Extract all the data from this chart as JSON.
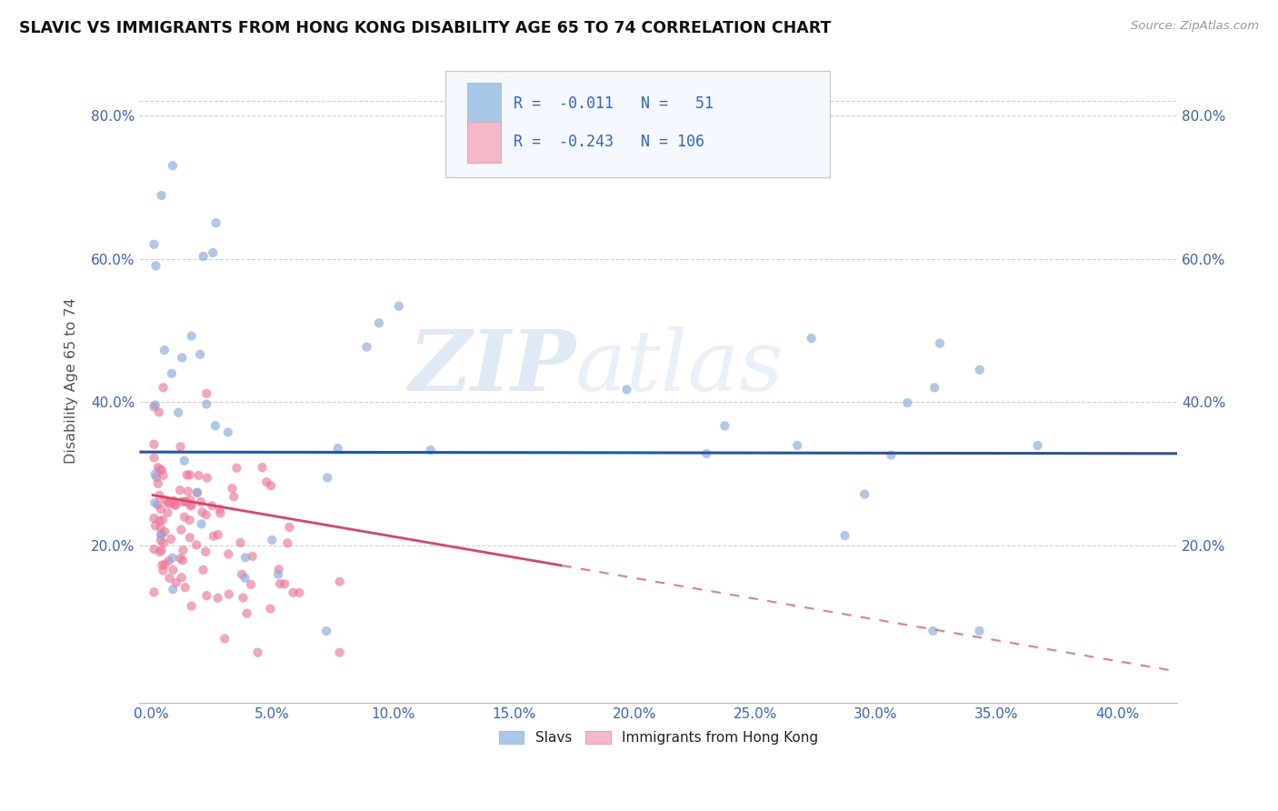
{
  "title": "SLAVIC VS IMMIGRANTS FROM HONG KONG DISABILITY AGE 65 TO 74 CORRELATION CHART",
  "source_text": "Source: ZipAtlas.com",
  "xlabel_ticks": [
    "0.0%",
    "5.0%",
    "10.0%",
    "15.0%",
    "20.0%",
    "25.0%",
    "30.0%",
    "35.0%",
    "40.0%"
  ],
  "xlabel_vals": [
    0.0,
    0.05,
    0.1,
    0.15,
    0.2,
    0.25,
    0.3,
    0.35,
    0.4
  ],
  "ylabel_ticks": [
    "",
    "20.0%",
    "40.0%",
    "60.0%",
    "80.0%"
  ],
  "ylabel_vals": [
    0.0,
    0.2,
    0.4,
    0.6,
    0.8
  ],
  "ylabel_label": "Disability Age 65 to 74",
  "xlim": [
    -0.005,
    0.425
  ],
  "ylim": [
    -0.02,
    0.88
  ],
  "watermark_zip": "ZIP",
  "watermark_atlas": "atlas",
  "slavs_color": "#a8c8e8",
  "hk_color": "#f4b8c8",
  "slavs_line_color": "#2255aa",
  "hk_line_color": "#dd4466",
  "slavs_scatter_color": "#88aadd",
  "hk_scatter_color": "#ee7799",
  "legend_text_color": "#3366cc",
  "title_color": "#111111",
  "background_color": "#ffffff",
  "grid_color": "#cccccc",
  "slavs_R": -0.011,
  "slavs_N": 51,
  "hk_R": -0.243,
  "hk_N": 106,
  "slavs_trend_y": 0.33,
  "slavs_trend_slope": -0.005,
  "hk_trend_y_intercept": 0.27,
  "hk_trend_slope": -0.58
}
